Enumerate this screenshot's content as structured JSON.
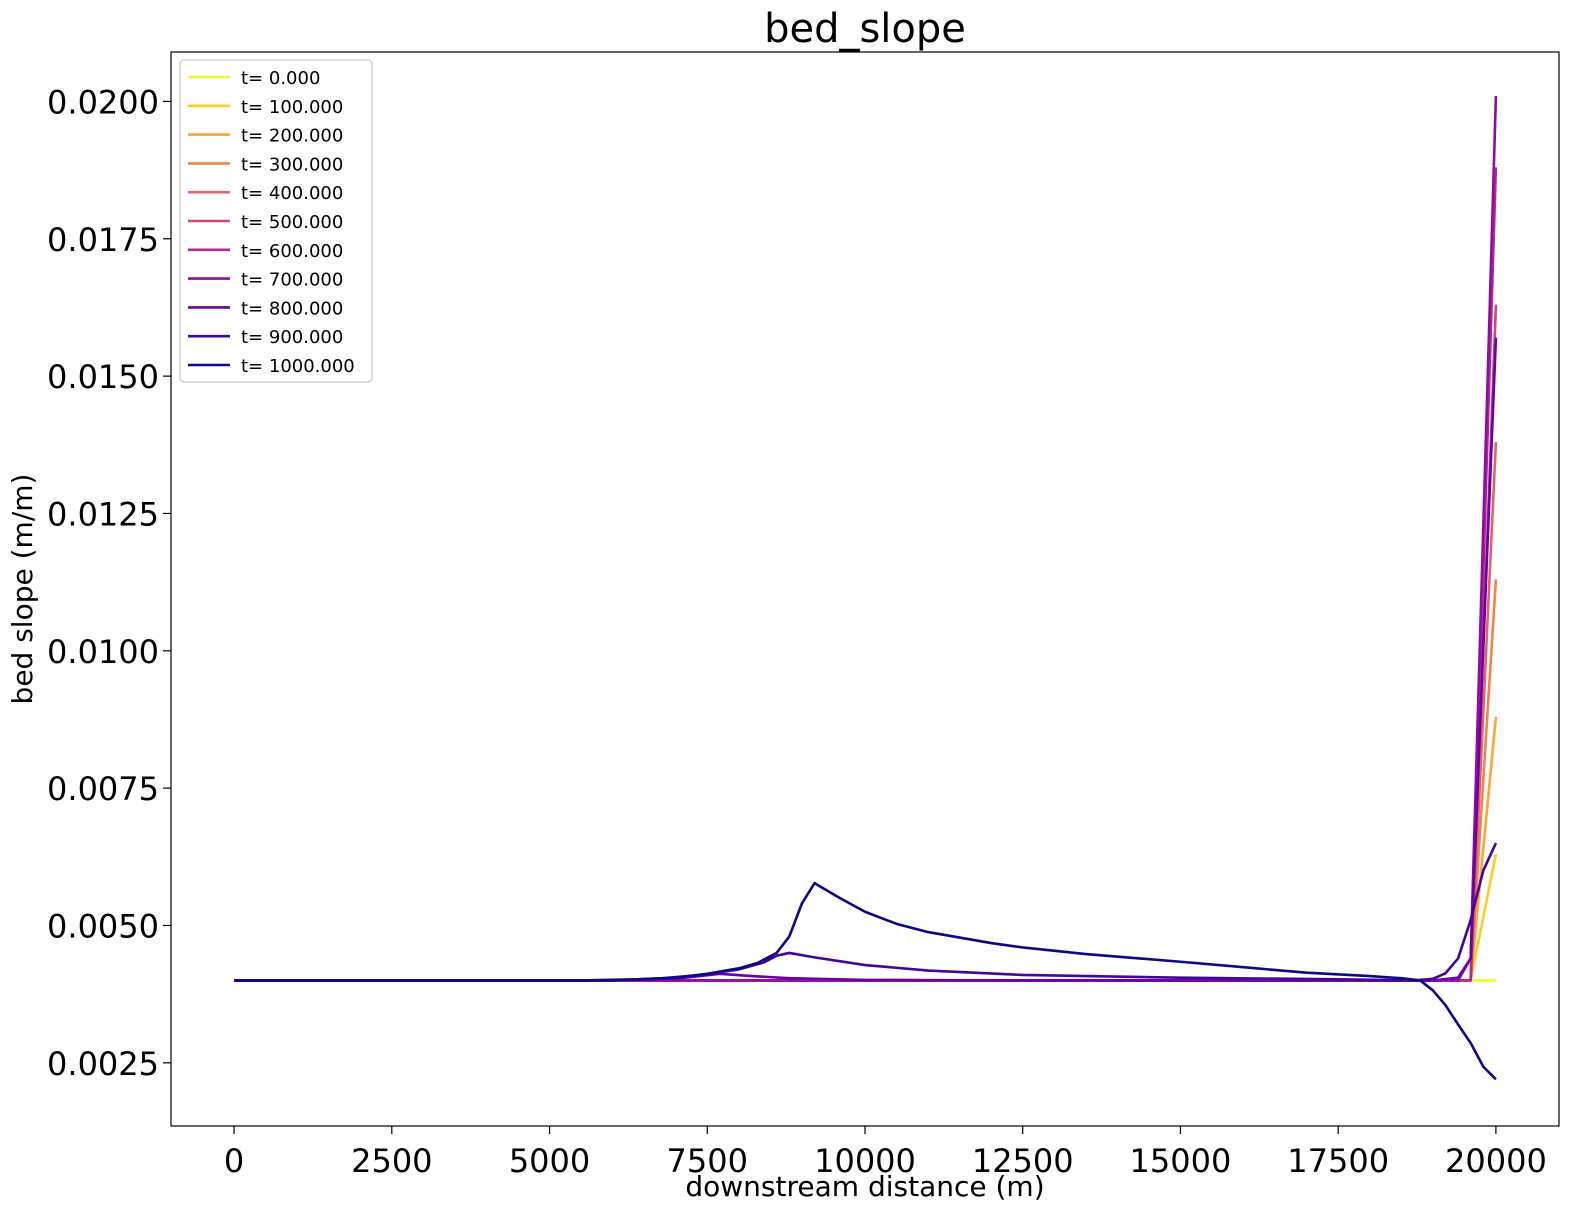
{
  "chart_data": {
    "type": "line",
    "title": "bed_slope",
    "xlabel": "downstream distance (m)",
    "ylabel": "bed slope (m/m)",
    "xlim": [
      -1000,
      21000
    ],
    "ylim": [
      0.00135,
      0.0209
    ],
    "xticks": [
      0,
      2500,
      5000,
      7500,
      10000,
      12500,
      15000,
      17500,
      20000
    ],
    "xtick_labels": [
      "0",
      "2500",
      "5000",
      "7500",
      "10000",
      "12500",
      "15000",
      "17500",
      "20000"
    ],
    "yticks": [
      0.0025,
      0.005,
      0.0075,
      0.01,
      0.0125,
      0.015,
      0.0175,
      0.02
    ],
    "ytick_labels": [
      "0.0025",
      "0.0050",
      "0.0075",
      "0.0100",
      "0.0125",
      "0.0150",
      "0.0175",
      "0.0200"
    ],
    "grid": false,
    "legend_position": "top-left",
    "series": [
      {
        "name": "t= 0.000",
        "color": "#f0f921",
        "points": [
          [
            0,
            0.004
          ],
          [
            19600,
            0.004
          ],
          [
            20000,
            0.004
          ]
        ]
      },
      {
        "name": "t= 100.000",
        "color": "#fcce25",
        "points": [
          [
            0,
            0.004
          ],
          [
            19600,
            0.004
          ],
          [
            20000,
            0.0063
          ]
        ]
      },
      {
        "name": "t= 200.000",
        "color": "#fca636",
        "points": [
          [
            0,
            0.004
          ],
          [
            19600,
            0.004
          ],
          [
            20000,
            0.0088
          ]
        ]
      },
      {
        "name": "t= 300.000",
        "color": "#f2844b",
        "points": [
          [
            0,
            0.004
          ],
          [
            19600,
            0.004
          ],
          [
            20000,
            0.0113
          ]
        ]
      },
      {
        "name": "t= 400.000",
        "color": "#e16462",
        "points": [
          [
            0,
            0.004
          ],
          [
            19600,
            0.004
          ],
          [
            20000,
            0.0138
          ]
        ]
      },
      {
        "name": "t= 500.000",
        "color": "#cc4778",
        "points": [
          [
            0,
            0.004
          ],
          [
            19600,
            0.004
          ],
          [
            20000,
            0.0163
          ]
        ]
      },
      {
        "name": "t= 600.000",
        "color": "#b12a90",
        "points": [
          [
            0,
            0.004
          ],
          [
            19600,
            0.004
          ],
          [
            20000,
            0.0188
          ]
        ]
      },
      {
        "name": "t= 700.000",
        "color": "#8f0da4",
        "points": [
          [
            0,
            0.004
          ],
          [
            19400,
            0.004
          ],
          [
            19600,
            0.0044
          ],
          [
            20000,
            0.0201
          ]
        ]
      },
      {
        "name": "t= 800.000",
        "color": "#6a00a8",
        "points": [
          [
            0,
            0.004
          ],
          [
            6000,
            0.004
          ],
          [
            7000,
            0.00403
          ],
          [
            7700,
            0.00412
          ],
          [
            8200,
            0.00408
          ],
          [
            8800,
            0.00404
          ],
          [
            10000,
            0.00401
          ],
          [
            12000,
            0.004
          ],
          [
            19000,
            0.004
          ],
          [
            19400,
            0.00405
          ],
          [
            19600,
            0.0044
          ],
          [
            20000,
            0.0157
          ]
        ]
      },
      {
        "name": "t= 900.000",
        "color": "#41049d",
        "points": [
          [
            0,
            0.004
          ],
          [
            6000,
            0.004
          ],
          [
            6800,
            0.00404
          ],
          [
            7400,
            0.0041
          ],
          [
            8000,
            0.0042
          ],
          [
            8400,
            0.00433
          ],
          [
            8600,
            0.00445
          ],
          [
            8800,
            0.0045
          ],
          [
            9200,
            0.00442
          ],
          [
            10000,
            0.00428
          ],
          [
            11000,
            0.00418
          ],
          [
            12500,
            0.0041
          ],
          [
            15000,
            0.00405
          ],
          [
            17500,
            0.00402
          ],
          [
            18700,
            0.004
          ],
          [
            19000,
            0.00403
          ],
          [
            19200,
            0.00413
          ],
          [
            19400,
            0.0044
          ],
          [
            19600,
            0.0051
          ],
          [
            19800,
            0.006
          ],
          [
            20000,
            0.0065
          ]
        ]
      },
      {
        "name": "t= 1000.000",
        "color": "#0d0887",
        "points": [
          [
            0,
            0.004
          ],
          [
            5500,
            0.004
          ],
          [
            6400,
            0.00402
          ],
          [
            7000,
            0.00405
          ],
          [
            7500,
            0.00412
          ],
          [
            8000,
            0.00422
          ],
          [
            8300,
            0.00432
          ],
          [
            8600,
            0.0045
          ],
          [
            8800,
            0.0048
          ],
          [
            9000,
            0.0054
          ],
          [
            9200,
            0.00577
          ],
          [
            9600,
            0.0055
          ],
          [
            10000,
            0.00525
          ],
          [
            10500,
            0.00503
          ],
          [
            11000,
            0.00488
          ],
          [
            12000,
            0.00468
          ],
          [
            12500,
            0.0046
          ],
          [
            13500,
            0.00448
          ],
          [
            15000,
            0.00434
          ],
          [
            16000,
            0.00424
          ],
          [
            17000,
            0.00414
          ],
          [
            18000,
            0.00408
          ],
          [
            18500,
            0.00404
          ],
          [
            18800,
            0.004
          ],
          [
            19000,
            0.00382
          ],
          [
            19200,
            0.00355
          ],
          [
            19400,
            0.0032
          ],
          [
            19600,
            0.00286
          ],
          [
            19800,
            0.00243
          ],
          [
            20000,
            0.0022
          ]
        ]
      }
    ]
  }
}
